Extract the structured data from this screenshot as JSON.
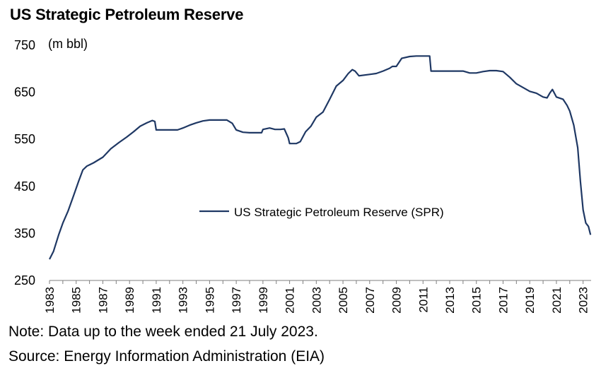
{
  "title": "US Strategic Petroleum Reserve",
  "unit_label": "(m bbl)",
  "notes": {
    "note": "Note: Data up to the week ended 21 July 2023.",
    "source": "Source: Energy Information Administration (EIA)"
  },
  "chart_data": {
    "type": "line",
    "title": "US Strategic Petroleum Reserve",
    "ylabel": "(m bbl)",
    "xlabel": "",
    "ylim": [
      250,
      750
    ],
    "yticks": [
      250,
      350,
      450,
      550,
      650,
      750
    ],
    "xlim": [
      1983,
      2023.6
    ],
    "xticks": [
      "1983",
      "1985",
      "1987",
      "1989",
      "1991",
      "1993",
      "1995",
      "1997",
      "1999",
      "2001",
      "2003",
      "2005",
      "2007",
      "2009",
      "2011",
      "2013",
      "2015",
      "2017",
      "2019",
      "2021",
      "2023"
    ],
    "legend_position": "center",
    "grid": false,
    "colors": {
      "line": "#1f3864",
      "axis": "#7f7f7f"
    },
    "series": [
      {
        "name": "US Strategic Petroleum Reserve (SPR)",
        "x": [
          1983.0,
          1983.3,
          1983.7,
          1984.0,
          1984.4,
          1984.8,
          1985.2,
          1985.5,
          1985.8,
          1986.3,
          1987.0,
          1987.6,
          1988.2,
          1988.8,
          1989.3,
          1989.8,
          1990.3,
          1990.7,
          1990.9,
          1991.0,
          1991.5,
          1992.0,
          1992.6,
          1993.0,
          1993.5,
          1994.0,
          1994.5,
          1995.0,
          1995.5,
          1996.0,
          1996.3,
          1996.7,
          1997.0,
          1997.5,
          1998.0,
          1998.5,
          1998.9,
          1999.0,
          1999.5,
          1999.9,
          2000.3,
          2000.6,
          2000.9,
          2001.0,
          2001.5,
          2001.8,
          2002.2,
          2002.6,
          2003.0,
          2003.5,
          2004.0,
          2004.5,
          2005.0,
          2005.4,
          2005.7,
          2005.9,
          2006.2,
          2007.0,
          2007.5,
          2008.0,
          2008.5,
          2008.7,
          2009.0,
          2009.4,
          2010.0,
          2010.5,
          2011.0,
          2011.5,
          2011.6,
          2012.0,
          2013.0,
          2014.0,
          2014.5,
          2015.0,
          2015.5,
          2016.0,
          2016.5,
          2017.0,
          2017.5,
          2018.0,
          2018.5,
          2019.0,
          2019.5,
          2020.0,
          2020.3,
          2020.5,
          2020.7,
          2021.0,
          2021.5,
          2021.8,
          2022.0,
          2022.3,
          2022.6,
          2022.8,
          2023.0,
          2023.2,
          2023.4,
          2023.56
        ],
        "values": [
          295,
          312,
          348,
          372,
          398,
          430,
          462,
          485,
          493,
          500,
          512,
          530,
          543,
          555,
          566,
          578,
          585,
          590,
          588,
          570,
          570,
          570,
          570,
          574,
          580,
          585,
          589,
          591,
          591,
          591,
          591,
          584,
          570,
          565,
          564,
          564,
          564,
          571,
          574,
          571,
          571,
          572,
          553,
          541,
          541,
          545,
          566,
          578,
          597,
          608,
          635,
          663,
          675,
          690,
          698,
          695,
          685,
          688,
          690,
          695,
          701,
          705,
          705,
          722,
          726,
          727,
          727,
          727,
          695,
          695,
          695,
          695,
          691,
          691,
          694,
          696,
          696,
          694,
          682,
          668,
          660,
          652,
          648,
          640,
          638,
          648,
          656,
          640,
          635,
          622,
          610,
          580,
          532,
          460,
          400,
          372,
          365,
          347
        ]
      }
    ]
  }
}
